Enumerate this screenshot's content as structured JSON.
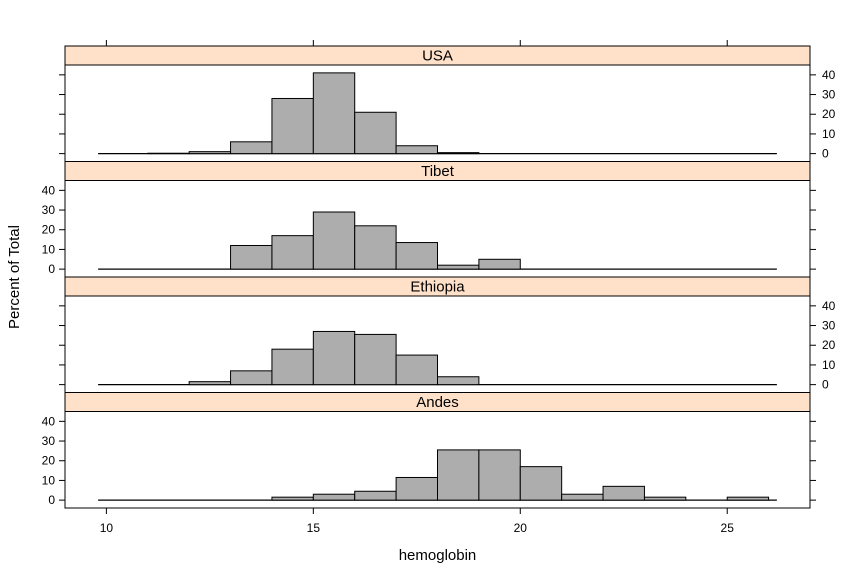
{
  "chart_data": {
    "type": "bar",
    "layout": "lattice-histogram, 4 stacked panels sharing x axis",
    "xlabel": "hemoglobin",
    "ylabel": "Percent of Total",
    "xlim": [
      9,
      27
    ],
    "ylim": [
      -4,
      45
    ],
    "x_ticks": [
      10,
      15,
      20,
      25
    ],
    "y_ticks": [
      0,
      10,
      20,
      30,
      40
    ],
    "bin_edges": [
      10,
      11,
      12,
      13,
      14,
      15,
      16,
      17,
      18,
      19,
      20,
      21,
      22,
      23,
      24,
      25,
      26
    ],
    "baseline_range": [
      9.8,
      26.2
    ],
    "strip_color": "#ffe0c8",
    "bar_color": "#adadad",
    "panels": [
      {
        "name": "USA",
        "y_axis_side": "right",
        "values": [
          0,
          0.2,
          1,
          6,
          28,
          41,
          21,
          4,
          0.5,
          0,
          0,
          0,
          0,
          0,
          0,
          0
        ]
      },
      {
        "name": "Tibet",
        "y_axis_side": "left",
        "values": [
          0,
          0,
          0,
          12,
          17,
          29,
          22,
          13.5,
          2,
          5,
          0,
          0,
          0,
          0,
          0,
          0
        ]
      },
      {
        "name": "Ethiopia",
        "y_axis_side": "right",
        "values": [
          0,
          0,
          1.5,
          7,
          18,
          27,
          25.5,
          15,
          4,
          0,
          0,
          0,
          0,
          0,
          0,
          0
        ]
      },
      {
        "name": "Andes",
        "y_axis_side": "left",
        "values": [
          0,
          0,
          0,
          0,
          1.5,
          3,
          4.5,
          11.5,
          25.5,
          25.5,
          17,
          3,
          7,
          1.5,
          0,
          1.5
        ]
      }
    ]
  }
}
